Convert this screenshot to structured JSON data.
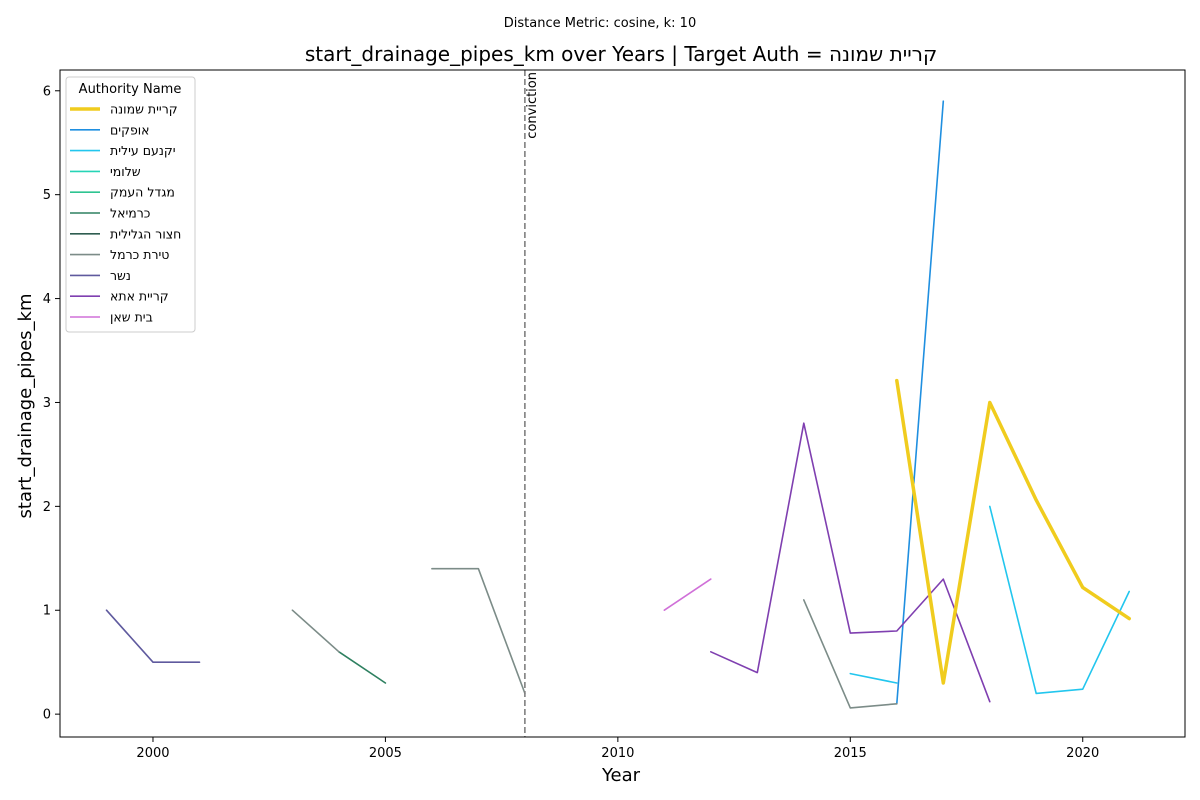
{
  "suptitle": "Distance Metric: cosine, k: 10",
  "chart_data": {
    "type": "line",
    "title": "start_drainage_pipes_km over Years | Target Auth = קריית שמונה",
    "xlabel": "Year",
    "ylabel": "start_drainage_pipes_km",
    "xlim": [
      1998.0,
      2022.2
    ],
    "ylim": [
      -0.22,
      6.2
    ],
    "x_ticks": [
      2000,
      2005,
      2010,
      2015,
      2020
    ],
    "y_ticks": [
      0,
      1,
      2,
      3,
      4,
      5,
      6
    ],
    "grid": false,
    "legend": {
      "title": "Authority Name",
      "placement": "top-left"
    },
    "annotations": [
      {
        "type": "vline",
        "x": 2008,
        "label": "conviction",
        "color": "#808080",
        "style": "dashed"
      }
    ],
    "series": [
      {
        "name": "קריית שמונה",
        "color": "#f0cc1e",
        "width": 3.5,
        "points": [
          [
            2016,
            3.21
          ],
          [
            2017,
            0.3
          ],
          [
            2018,
            3.0
          ],
          [
            2019,
            2.06
          ],
          [
            2020,
            1.22
          ],
          [
            2021,
            0.92
          ]
        ]
      },
      {
        "name": "אופקים",
        "color": "#1f8fe0",
        "width": 1.6,
        "points": [
          [
            2016,
            0.1
          ],
          [
            2017,
            5.9
          ]
        ]
      },
      {
        "name": "יקנעם עילית",
        "color": "#22c6ee",
        "width": 1.6,
        "points": [
          [
            2015,
            0.39
          ],
          [
            2016,
            0.3
          ],
          [
            null,
            null
          ],
          [
            2018,
            2.0
          ],
          [
            2019,
            0.2
          ],
          [
            2020,
            0.24
          ],
          [
            2021,
            1.18
          ]
        ]
      },
      {
        "name": "שלומי",
        "color": "#26d4b6",
        "width": 1.6,
        "points": []
      },
      {
        "name": "מגדל העמק",
        "color": "#2ec491",
        "width": 1.6,
        "points": []
      },
      {
        "name": "כרמיאל",
        "color": "#2e8060",
        "width": 1.6,
        "points": [
          [
            2004,
            0.6
          ],
          [
            2005,
            0.3
          ]
        ]
      },
      {
        "name": "חצור הגלילית",
        "color": "#2f5d50",
        "width": 1.6,
        "points": []
      },
      {
        "name": "טירת כרמל",
        "color": "#7c8c88",
        "width": 1.6,
        "points": [
          [
            2003,
            1.0
          ],
          [
            2004,
            0.6
          ],
          [
            null,
            null
          ],
          [
            2006,
            1.4
          ],
          [
            2007,
            1.4
          ],
          [
            2008,
            0.2
          ],
          [
            null,
            null
          ],
          [
            2014,
            1.1
          ],
          [
            2015,
            0.06
          ],
          [
            2016,
            0.1
          ]
        ]
      },
      {
        "name": "נשר",
        "color": "#5f5a9e",
        "width": 1.6,
        "points": [
          [
            1999,
            1.0
          ],
          [
            2000,
            0.5
          ],
          [
            2001,
            0.5
          ]
        ]
      },
      {
        "name": "קריית אתא",
        "color": "#7f3fb0",
        "width": 1.6,
        "points": [
          [
            2012,
            0.6
          ],
          [
            2013,
            0.4
          ],
          [
            2014,
            2.8
          ],
          [
            2015,
            0.78
          ],
          [
            2016,
            0.8
          ],
          [
            2017,
            1.3
          ],
          [
            2018,
            0.12
          ]
        ]
      },
      {
        "name": "בית שאן",
        "color": "#d070d8",
        "width": 1.6,
        "points": [
          [
            2011,
            1.0
          ],
          [
            2012,
            1.3
          ]
        ]
      }
    ]
  }
}
